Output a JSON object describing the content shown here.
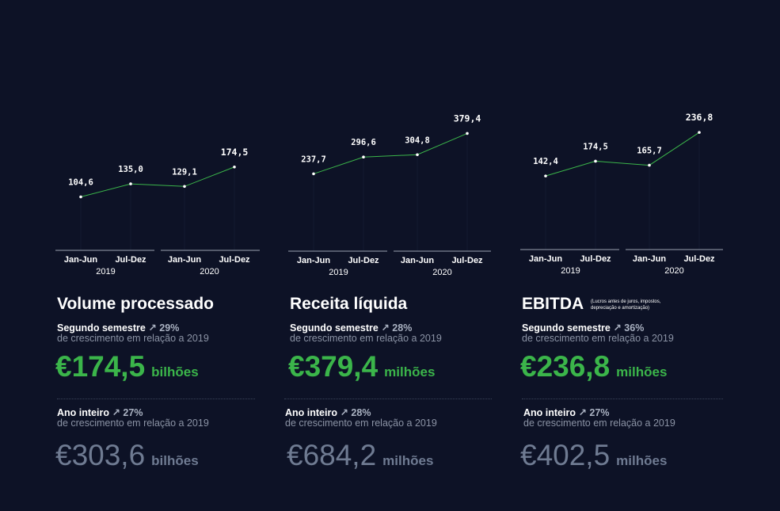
{
  "colors": {
    "background": "#0d1226",
    "line": "#3bb54a",
    "accent_green": "#3bb54a",
    "muted": "#6f7b92"
  },
  "chart_data": [
    {
      "type": "line",
      "categories": [
        "Jan-Jun",
        "Jul-Dez",
        "Jan-Jun",
        "Jul-Dez"
      ],
      "groups": [
        {
          "label": "2019",
          "span": [
            0,
            1
          ]
        },
        {
          "label": "2020",
          "span": [
            2,
            3
          ]
        }
      ],
      "values": [
        104.6,
        135.0,
        129.1,
        174.5
      ],
      "value_labels": [
        "104,6",
        "135,0",
        "129,1",
        "174,5"
      ],
      "ylim": [
        0,
        180
      ],
      "grid": false
    },
    {
      "type": "line",
      "categories": [
        "Jan-Jun",
        "Jul-Dez",
        "Jan-Jun",
        "Jul-Dez"
      ],
      "groups": [
        {
          "label": "2019",
          "span": [
            0,
            1
          ]
        },
        {
          "label": "2020",
          "span": [
            2,
            3
          ]
        }
      ],
      "values": [
        237.7,
        296.6,
        304.8,
        379.4
      ],
      "value_labels": [
        "237,7",
        "296,6",
        "304,8",
        "379,4"
      ],
      "ylim": [
        0,
        390
      ],
      "grid": false
    },
    {
      "type": "line",
      "categories": [
        "Jan-Jun",
        "Jul-Dez",
        "Jan-Jun",
        "Jul-Dez"
      ],
      "groups": [
        {
          "label": "2019",
          "span": [
            0,
            1
          ]
        },
        {
          "label": "2020",
          "span": [
            2,
            3
          ]
        }
      ],
      "values": [
        142.4,
        174.5,
        165.7,
        236.8
      ],
      "value_labels": [
        "142,4",
        "174,5",
        "165,7",
        "236,8"
      ],
      "ylim": [
        0,
        245
      ],
      "grid": false
    }
  ],
  "panels": [
    {
      "title": "Volume processado",
      "note": "",
      "semester_label": "Segundo semestre",
      "semester_growth": "29%",
      "growth_text": "de crescimento em relação a 2019",
      "semester_value": "€174,5",
      "semester_unit": "bilhões",
      "year_label": "Ano inteiro",
      "year_growth": "27%",
      "year_growth_text": "de crescimento em relação a 2019",
      "year_value": "€303,6",
      "year_unit": "bilhões"
    },
    {
      "title": "Receita líquida",
      "note": "",
      "semester_label": "Segundo semestre",
      "semester_growth": "28%",
      "growth_text": "de crescimento em relação a 2019",
      "semester_value": "€379,4",
      "semester_unit": "milhões",
      "year_label": "Ano inteiro",
      "year_growth": "28%",
      "year_growth_text": "de crescimento em relação a 2019",
      "year_value": "€684,2",
      "year_unit": "milhões"
    },
    {
      "title": "EBITDA",
      "note_line1": "(Lucros antes de juros, impostos,",
      "note_line2": "depreciação e amortização)",
      "semester_label": "Segundo semestre",
      "semester_growth": "36%",
      "growth_text": "de crescimento em relação a 2019",
      "semester_value": "€236,8",
      "semester_unit": "milhões",
      "year_label": "Ano inteiro",
      "year_growth": "27%",
      "year_growth_text": "de crescimento em relação a 2019",
      "year_value": "€402,5",
      "year_unit": "milhões"
    }
  ]
}
